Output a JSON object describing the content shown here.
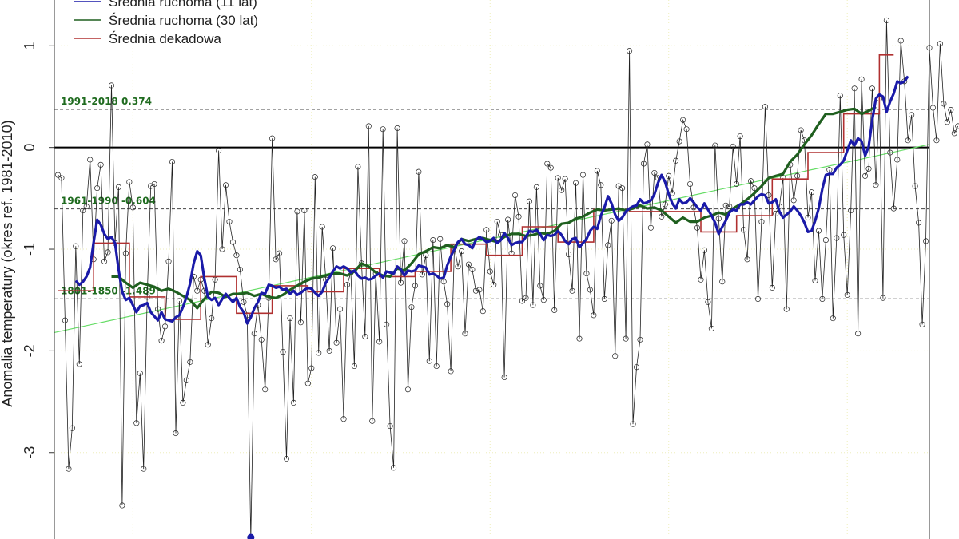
{
  "chart_data": {
    "type": "line",
    "ylabel": "Anomalia temperatury (okres ref. 1981-2010)",
    "ylim": [
      -3.85,
      1.45
    ],
    "xlim": [
      1778,
      2023
    ],
    "y_ticks": [
      -3,
      -2,
      -1,
      0,
      1
    ],
    "grid": true,
    "legend_position": "top-left",
    "colors": {
      "annual": "#222222",
      "ma11": "#1a1aa8",
      "ma30": "#1f5f1f",
      "decadal": "#b03030",
      "trend": "#66dd66",
      "ref_lines": "#444444",
      "ref_labels": "#1f6b1f",
      "grid": "#eeeebb",
      "min_marker": "#1a1aa8"
    },
    "legend": [
      {
        "label": "Średnia ruchoma (11 lat)",
        "color": "#1a1aa8"
      },
      {
        "label": "Średnia ruchoma (30 lat)",
        "color": "#1f5f1f"
      },
      {
        "label": "Średnia dekadowa",
        "color": "#b03030"
      }
    ],
    "reference_lines": [
      {
        "label": "1991-2018 0.374",
        "value": 0.374
      },
      {
        "label": "1961-1990 -0.604",
        "value": -0.604
      },
      {
        "label": "1801-1850 -1.489",
        "value": -1.489
      }
    ],
    "trend": {
      "x": [
        1778,
        2023
      ],
      "y": [
        -1.82,
        0.03
      ]
    },
    "annual_series": {
      "x_start": 1779,
      "values": [
        -0.27,
        -0.3,
        -1.7,
        -3.16,
        -2.76,
        -0.97,
        -2.13,
        -0.62,
        -0.58,
        -0.12,
        -1.1,
        -0.4,
        -0.17,
        -1.12,
        -1.03,
        0.61,
        -0.94,
        -0.39,
        -3.52,
        -1.04,
        -0.34,
        -0.59,
        -2.71,
        -2.22,
        -3.16,
        -1.47,
        -0.38,
        -0.36,
        -1.59,
        -1.9,
        -1.76,
        -1.12,
        -0.14,
        -2.81,
        -1.51,
        -2.51,
        -2.29,
        -2.11,
        -1.27,
        -1.41,
        -1.3,
        -1.41,
        -1.94,
        -1.68,
        -1.3,
        -0.03,
        -1.0,
        -0.37,
        -0.73,
        -0.93,
        -1.06,
        -1.2,
        -1.52,
        -1.65,
        -3.85,
        -1.83,
        -1.55,
        -1.89,
        -2.38,
        -1.48,
        0.09,
        -1.1,
        -1.04,
        -2.01,
        -3.06,
        -1.68,
        -2.51,
        -0.63,
        -1.72,
        -0.62,
        -2.32,
        -2.17,
        -0.29,
        -2.02,
        -0.78,
        -1.3,
        -2.0,
        -0.99,
        -1.92,
        -1.59,
        -2.67,
        -1.35,
        -1.23,
        -2.15,
        -0.19,
        -1.14,
        -1.86,
        0.21,
        -2.69,
        -1.24,
        -1.91,
        0.18,
        -1.74,
        -2.74,
        -3.15,
        0.19,
        -1.33,
        -0.92,
        -2.38,
        -1.57,
        -1.36,
        -0.24,
        -1.25,
        -1.06,
        -2.1,
        -0.91,
        -2.15,
        -0.9,
        -1.32,
        -1.54,
        -2.2,
        -0.98,
        -1.17,
        -1.02,
        -1.83,
        -1.15,
        -1.2,
        -1.41,
        -1.4,
        -1.61,
        -0.81,
        -1.22,
        -1.35,
        -0.73,
        -0.86,
        -2.26,
        -0.71,
        -1.04,
        -0.47,
        -0.68,
        -1.51,
        -1.48,
        -0.53,
        -1.55,
        -0.39,
        -1.36,
        -1.5,
        -0.16,
        -0.2,
        -1.6,
        -0.3,
        -0.42,
        -0.31,
        -1.05,
        -1.41,
        -0.35,
        -1.88,
        -0.27,
        -1.24,
        -1.4,
        -1.65,
        -0.23,
        -0.37,
        -1.49,
        -0.96,
        -0.72,
        -2.05,
        -0.38,
        -0.4,
        -1.88,
        0.95,
        -2.72,
        -2.16,
        -1.89,
        -0.16,
        0.03,
        -0.79,
        -0.25,
        -0.3,
        -0.68,
        -0.56,
        -0.28,
        -0.45,
        -0.13,
        0.06,
        0.27,
        0.18,
        -0.36,
        -0.59,
        -0.79,
        -1.3,
        -1.01,
        -1.52,
        -1.78,
        0.02,
        -0.7,
        -1.32,
        -0.57,
        -0.58,
        0.01,
        -0.36,
        0.11,
        -0.81,
        -1.1,
        -0.33,
        -0.4,
        -1.49,
        -0.73,
        0.4,
        -0.47,
        -1.38,
        -0.65,
        -0.58,
        -0.3,
        -1.59,
        -0.17,
        -0.52,
        -0.28,
        0.17,
        0.07,
        -0.69,
        -0.44,
        -1.31,
        -0.82,
        -1.49,
        -0.91,
        -0.22,
        -1.68,
        -0.89,
        0.51,
        -0.86,
        -1.45,
        -0.62,
        0.58,
        -1.83,
        0.67,
        -0.28,
        -0.21,
        0.58,
        -0.37,
        0.48,
        -1.48,
        1.25,
        -0.05,
        -0.6,
        -0.12,
        1.05,
        0.65,
        0.07,
        0.32,
        -0.38,
        -0.74,
        -1.74,
        -0.92,
        0.98,
        0.39,
        0.07,
        1.02,
        0.43,
        0.25,
        0.37,
        0.14,
        0.21
      ]
    },
    "ma11": {
      "x": [
        1784,
        1785,
        1786,
        1787,
        1788,
        1789,
        1790,
        1791,
        1792,
        1793,
        1794,
        1795,
        1796,
        1797,
        1798,
        1799,
        1800,
        1801,
        1802,
        1803,
        1804,
        1805,
        1806,
        1807,
        1808,
        1809,
        1810,
        1811,
        1812,
        1813,
        1814,
        1815,
        1816,
        1817,
        1818,
        1819,
        1820,
        1821,
        1822,
        1823,
        1824,
        1825,
        1826,
        1827,
        1828,
        1829,
        1830,
        1831,
        1832,
        1833,
        1834,
        1835,
        1836,
        1837,
        1838,
        1839,
        1840,
        1841,
        1842,
        1843,
        1844,
        1845,
        1846,
        1847,
        1848,
        1849,
        1850,
        1851,
        1852,
        1853,
        1854,
        1855,
        1856,
        1857,
        1858,
        1859,
        1860,
        1861,
        1862,
        1863,
        1864,
        1865,
        1866,
        1867,
        1868,
        1869,
        1870,
        1871,
        1872,
        1873,
        1874,
        1875,
        1876,
        1877,
        1878,
        1879,
        1880,
        1881,
        1882,
        1883,
        1884,
        1885,
        1886,
        1887,
        1888,
        1889,
        1890,
        1891,
        1892,
        1893,
        1894,
        1895,
        1896,
        1897,
        1898,
        1899,
        1900,
        1901,
        1902,
        1903,
        1904,
        1905,
        1906,
        1907,
        1908,
        1909,
        1910,
        1911,
        1912,
        1913,
        1914,
        1915,
        1916,
        1917,
        1918,
        1919,
        1920,
        1921,
        1922,
        1923,
        1924,
        1925,
        1926,
        1927,
        1928,
        1929,
        1930,
        1931,
        1932,
        1933,
        1934,
        1935,
        1936,
        1937,
        1938,
        1939,
        1940,
        1941,
        1942,
        1943,
        1944,
        1945,
        1946,
        1947,
        1948,
        1949,
        1950,
        1951,
        1952,
        1953,
        1954,
        1955,
        1956,
        1957,
        1958,
        1959,
        1960,
        1961,
        1962,
        1963,
        1964,
        1965,
        1966,
        1967,
        1968,
        1969,
        1970,
        1971,
        1972,
        1973,
        1974,
        1975,
        1976,
        1977,
        1978,
        1979,
        1980,
        1981,
        1982,
        1983,
        1984,
        1985,
        1986,
        1987,
        1988,
        1989,
        1990,
        1991,
        1992,
        1993,
        1994,
        1995,
        1996,
        1997,
        1998,
        1999,
        2000,
        2001,
        2002,
        2003,
        2004,
        2005,
        2006,
        2007,
        2008,
        2009,
        2010,
        2011,
        2012,
        2013,
        2014,
        2015,
        2016,
        2017
      ],
      "y": [
        -1.31,
        -1.35,
        -1.32,
        -1.27,
        -1.18,
        -0.93,
        -0.71,
        -0.76,
        -0.85,
        -0.9,
        -0.88,
        -0.94,
        -1.2,
        -1.42,
        -1.5,
        -1.48,
        -1.55,
        -1.62,
        -1.56,
        -1.55,
        -1.53,
        -1.62,
        -1.66,
        -1.7,
        -1.62,
        -1.69,
        -1.7,
        -1.71,
        -1.67,
        -1.65,
        -1.57,
        -1.47,
        -1.34,
        -1.14,
        -1.02,
        -1.06,
        -1.29,
        -1.47,
        -1.5,
        -1.48,
        -1.55,
        -1.49,
        -1.44,
        -1.48,
        -1.52,
        -1.48,
        -1.57,
        -1.62,
        -1.73,
        -1.67,
        -1.58,
        -1.52,
        -1.43,
        -1.44,
        -1.35,
        -1.36,
        -1.38,
        -1.37,
        -1.4,
        -1.39,
        -1.44,
        -1.41,
        -1.45,
        -1.43,
        -1.4,
        -1.38,
        -1.39,
        -1.43,
        -1.46,
        -1.42,
        -1.33,
        -1.28,
        -1.22,
        -1.17,
        -1.19,
        -1.17,
        -1.19,
        -1.23,
        -1.21,
        -1.26,
        -1.29,
        -1.28,
        -1.3,
        -1.29,
        -1.26,
        -1.24,
        -1.28,
        -1.22,
        -1.23,
        -1.24,
        -1.17,
        -1.2,
        -1.26,
        -1.21,
        -1.22,
        -1.21,
        -1.16,
        -1.17,
        -1.18,
        -1.25,
        -1.24,
        -1.26,
        -1.29,
        -1.28,
        -1.16,
        -1.07,
        -1.0,
        -0.93,
        -0.9,
        -0.95,
        -0.96,
        -0.99,
        -0.91,
        -0.88,
        -0.9,
        -0.93,
        -0.92,
        -0.89,
        -0.94,
        -0.91,
        -0.84,
        -0.89,
        -0.96,
        -0.94,
        -0.93,
        -0.93,
        -0.88,
        -0.82,
        -0.83,
        -0.81,
        -0.85,
        -0.91,
        -0.86,
        -0.87,
        -0.86,
        -0.82,
        -0.86,
        -0.92,
        -0.95,
        -0.9,
        -0.89,
        -0.98,
        -0.94,
        -0.9,
        -0.82,
        -0.78,
        -0.8,
        -0.67,
        -0.59,
        -0.48,
        -0.55,
        -0.66,
        -0.72,
        -0.69,
        -0.63,
        -0.6,
        -0.58,
        -0.57,
        -0.51,
        -0.55,
        -0.54,
        -0.52,
        -0.46,
        -0.35,
        -0.27,
        -0.34,
        -0.46,
        -0.55,
        -0.6,
        -0.51,
        -0.55,
        -0.54,
        -0.5,
        -0.54,
        -0.59,
        -0.62,
        -0.55,
        -0.61,
        -0.67,
        -0.74,
        -0.85,
        -0.78,
        -0.72,
        -0.64,
        -0.61,
        -0.62,
        -0.56,
        -0.56,
        -0.54,
        -0.56,
        -0.52,
        -0.48,
        -0.46,
        -0.47,
        -0.55,
        -0.54,
        -0.51,
        -0.63,
        -0.69,
        -0.66,
        -0.63,
        -0.58,
        -0.62,
        -0.67,
        -0.74,
        -0.83,
        -0.82,
        -0.72,
        -0.6,
        -0.41,
        -0.27,
        -0.26,
        -0.26,
        -0.2,
        -0.17,
        -0.13,
        -0.03,
        0.07,
        0.02,
        0.09,
        0.06,
        -0.08,
        0.01,
        0.27,
        0.48,
        0.52,
        0.5,
        0.35,
        0.45,
        0.53,
        0.65,
        0.63,
        0.65,
        0.7
      ]
    },
    "ma30": {
      "x": [
        1794,
        1796,
        1798,
        1800,
        1802,
        1804,
        1806,
        1808,
        1810,
        1812,
        1814,
        1816,
        1818,
        1820,
        1822,
        1824,
        1826,
        1828,
        1830,
        1832,
        1834,
        1836,
        1838,
        1840,
        1842,
        1844,
        1846,
        1848,
        1850,
        1852,
        1854,
        1856,
        1858,
        1860,
        1862,
        1864,
        1866,
        1868,
        1870,
        1872,
        1874,
        1876,
        1878,
        1880,
        1882,
        1884,
        1886,
        1888,
        1890,
        1892,
        1894,
        1896,
        1898,
        1900,
        1902,
        1904,
        1906,
        1908,
        1910,
        1912,
        1914,
        1916,
        1918,
        1920,
        1922,
        1924,
        1926,
        1928,
        1930,
        1932,
        1934,
        1936,
        1938,
        1940,
        1942,
        1944,
        1946,
        1948,
        1950,
        1952,
        1954,
        1956,
        1958,
        1960,
        1962,
        1964,
        1966,
        1968,
        1970,
        1972,
        1974,
        1976,
        1978,
        1980,
        1982,
        1984,
        1986,
        1988,
        1990,
        1992,
        1994,
        1996,
        1998,
        2000,
        2002,
        2004,
        2006,
        2008
      ],
      "y": [
        -1.27,
        -1.27,
        -1.33,
        -1.38,
        -1.33,
        -1.35,
        -1.37,
        -1.41,
        -1.39,
        -1.42,
        -1.46,
        -1.5,
        -1.58,
        -1.49,
        -1.42,
        -1.43,
        -1.47,
        -1.44,
        -1.44,
        -1.43,
        -1.46,
        -1.44,
        -1.47,
        -1.48,
        -1.45,
        -1.4,
        -1.36,
        -1.32,
        -1.29,
        -1.28,
        -1.26,
        -1.24,
        -1.24,
        -1.26,
        -1.22,
        -1.14,
        -1.17,
        -1.23,
        -1.26,
        -1.27,
        -1.19,
        -1.21,
        -1.14,
        -1.05,
        -1.02,
        -0.98,
        -0.99,
        -0.96,
        -0.98,
        -0.9,
        -0.92,
        -0.9,
        -0.89,
        -0.91,
        -0.93,
        -0.88,
        -0.85,
        -0.85,
        -0.87,
        -0.86,
        -0.84,
        -0.85,
        -0.82,
        -0.75,
        -0.74,
        -0.7,
        -0.68,
        -0.64,
        -0.61,
        -0.62,
        -0.61,
        -0.6,
        -0.62,
        -0.6,
        -0.57,
        -0.6,
        -0.59,
        -0.62,
        -0.68,
        -0.74,
        -0.69,
        -0.73,
        -0.73,
        -0.69,
        -0.67,
        -0.64,
        -0.66,
        -0.6,
        -0.56,
        -0.51,
        -0.45,
        -0.38,
        -0.3,
        -0.28,
        -0.26,
        -0.14,
        -0.07,
        0.03,
        0.12,
        0.23,
        0.33,
        0.33,
        0.35,
        0.37,
        0.38,
        0.33,
        0.36,
        0.4
      ]
    },
    "decadal": {
      "segments": [
        {
          "x0": 1779,
          "x1": 1789,
          "y": -1.41
        },
        {
          "x0": 1789,
          "x1": 1799,
          "y": -0.94
        },
        {
          "x0": 1799,
          "x1": 1809,
          "y": -1.47
        },
        {
          "x0": 1809,
          "x1": 1819,
          "y": -1.69
        },
        {
          "x0": 1819,
          "x1": 1829,
          "y": -1.27
        },
        {
          "x0": 1829,
          "x1": 1839,
          "y": -1.63
        },
        {
          "x0": 1839,
          "x1": 1849,
          "y": -1.36
        },
        {
          "x0": 1849,
          "x1": 1859,
          "y": -1.42
        },
        {
          "x0": 1859,
          "x1": 1869,
          "y": -1.19
        },
        {
          "x0": 1869,
          "x1": 1879,
          "y": -1.27
        },
        {
          "x0": 1879,
          "x1": 1889,
          "y": -1.22
        },
        {
          "x0": 1889,
          "x1": 1899,
          "y": -0.95
        },
        {
          "x0": 1899,
          "x1": 1909,
          "y": -1.06
        },
        {
          "x0": 1909,
          "x1": 1919,
          "y": -0.78
        },
        {
          "x0": 1919,
          "x1": 1929,
          "y": -0.93
        },
        {
          "x0": 1929,
          "x1": 1939,
          "y": -0.61
        },
        {
          "x0": 1939,
          "x1": 1949,
          "y": -0.63
        },
        {
          "x0": 1949,
          "x1": 1959,
          "y": -0.63
        },
        {
          "x0": 1959,
          "x1": 1969,
          "y": -0.83
        },
        {
          "x0": 1969,
          "x1": 1979,
          "y": -0.67
        },
        {
          "x0": 1979,
          "x1": 1989,
          "y": -0.31
        },
        {
          "x0": 1989,
          "x1": 1999,
          "y": -0.05
        },
        {
          "x0": 1999,
          "x1": 2009,
          "y": 0.33
        },
        {
          "x0": 2009,
          "x1": 2013,
          "y": 0.91
        }
      ]
    },
    "min_marker": {
      "x": 1833,
      "y": -3.85
    }
  }
}
